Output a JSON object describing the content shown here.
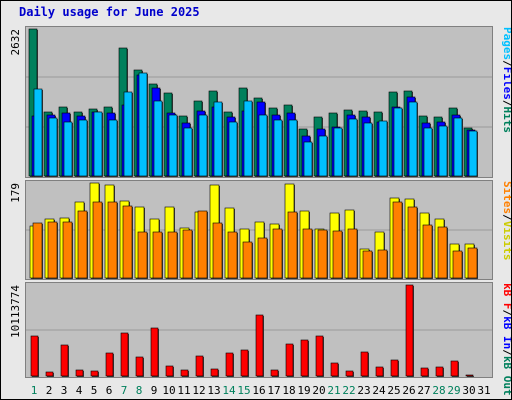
{
  "title": "Daily usage for June 2025",
  "colors": {
    "hits": "#00805c",
    "files": "#0000ff",
    "pages": "#00c0ff",
    "visits": "#ffff00",
    "sites": "#ff8000",
    "kb_in": "#0000ff",
    "kb_out": "#00805c",
    "kb_f": "#ff0000",
    "weekend_label": "#00805c",
    "weekday_label": "#000000",
    "panel_bg": "#c0c0c0",
    "frame_bg": "#e8e8e8"
  },
  "legends": {
    "top": [
      {
        "text": "Hits",
        "color": "#00805c"
      },
      {
        "text": "/",
        "color": "#000000"
      },
      {
        "text": "Files",
        "color": "#0000ff"
      },
      {
        "text": "/",
        "color": "#000000"
      },
      {
        "text": "Pages",
        "color": "#00c0ff"
      }
    ],
    "middle": [
      {
        "text": "Visits",
        "color": "#cccc00"
      },
      {
        "text": "/",
        "color": "#000000"
      },
      {
        "text": "Sites",
        "color": "#ff8000"
      }
    ],
    "bottom": [
      {
        "text": "kB Out",
        "color": "#00805c"
      },
      {
        "text": "/",
        "color": "#000000"
      },
      {
        "text": "kB In",
        "color": "#0000ff"
      },
      {
        "text": "/",
        "color": "#000000"
      },
      {
        "text": "kB F",
        "color": "#ff0000"
      }
    ]
  },
  "chart_data": [
    {
      "type": "bar",
      "name": "hits-files-pages",
      "categories": [
        1,
        2,
        3,
        4,
        5,
        6,
        7,
        8,
        9,
        10,
        11,
        12,
        13,
        14,
        15,
        16,
        17,
        18,
        19,
        20,
        21,
        22,
        23,
        24,
        25,
        26,
        27,
        28,
        29,
        30,
        31
      ],
      "ylim": [
        0,
        2632
      ],
      "max_label": "2632",
      "series": [
        {
          "name": "Hits",
          "values": [
            2632,
            1150,
            1230,
            1150,
            1200,
            1230,
            2300,
            1900,
            1650,
            1480,
            1080,
            1340,
            1520,
            1150,
            1580,
            1400,
            1220,
            1280,
            840,
            1050,
            1130,
            1180,
            1160,
            1150,
            1500,
            1520,
            1080,
            1050,
            1220,
            860,
            0
          ]
        },
        {
          "name": "Files",
          "values": [
            1080,
            1100,
            1120,
            1080,
            1150,
            1120,
            1280,
            1800,
            1580,
            1120,
            950,
            1170,
            1230,
            1050,
            1160,
            1320,
            1100,
            1130,
            720,
            850,
            870,
            1100,
            1060,
            960,
            1230,
            1420,
            940,
            970,
            1100,
            830,
            0
          ]
        },
        {
          "name": "Pages",
          "values": [
            1550,
            1040,
            970,
            1010,
            1150,
            1000,
            1500,
            1850,
            1340,
            1090,
            860,
            1100,
            1320,
            960,
            1340,
            1100,
            1010,
            1000,
            600,
            720,
            860,
            1020,
            940,
            980,
            1220,
            1320,
            860,
            900,
            1040,
            800,
            0
          ]
        }
      ]
    },
    {
      "type": "bar",
      "name": "visits-sites",
      "categories": [
        1,
        2,
        3,
        4,
        5,
        6,
        7,
        8,
        9,
        10,
        11,
        12,
        13,
        14,
        15,
        16,
        17,
        18,
        19,
        20,
        21,
        22,
        23,
        24,
        25,
        26,
        27,
        28,
        29,
        30,
        31
      ],
      "ylim": [
        0,
        179
      ],
      "max_label": "179",
      "series": [
        {
          "name": "Visits",
          "values": [
            98,
            111,
            113,
            143,
            179,
            175,
            146,
            134,
            111,
            133,
            95,
            124,
            175,
            131,
            93,
            106,
            101,
            178,
            126,
            92,
            122,
            128,
            54,
            86,
            151,
            148,
            123,
            111,
            64,
            65,
            0
          ]
        },
        {
          "name": "Sites",
          "values": [
            103,
            106,
            106,
            127,
            143,
            144,
            136,
            86,
            86,
            86,
            91,
            126,
            103,
            86,
            68,
            75,
            93,
            125,
            93,
            91,
            88,
            93,
            50,
            53,
            143,
            133,
            99,
            96,
            50,
            56,
            0
          ]
        }
      ]
    },
    {
      "type": "bar",
      "name": "kb-out-in-f",
      "categories": [
        1,
        2,
        3,
        4,
        5,
        6,
        7,
        8,
        9,
        10,
        11,
        12,
        13,
        14,
        15,
        16,
        17,
        18,
        19,
        20,
        21,
        22,
        23,
        24,
        25,
        26,
        27,
        28,
        29,
        30,
        31
      ],
      "ylim": [
        0,
        10113774
      ],
      "max_label": "10113774",
      "series": [
        {
          "name": "kB F",
          "values": [
            4400000,
            480000,
            3500000,
            640000,
            560000,
            2600000,
            4800000,
            2100000,
            5300000,
            1100000,
            720000,
            2200000,
            800000,
            2600000,
            2900000,
            6800000,
            700000,
            3600000,
            4000000,
            4400000,
            1400000,
            560000,
            2700000,
            1000000,
            1800000,
            10113774,
            900000,
            1000000,
            1700000,
            120000,
            0
          ]
        }
      ]
    }
  ],
  "days": [
    "1",
    "2",
    "3",
    "4",
    "5",
    "6",
    "7",
    "8",
    "9",
    "10",
    "11",
    "12",
    "13",
    "14",
    "15",
    "16",
    "17",
    "18",
    "19",
    "20",
    "21",
    "22",
    "23",
    "24",
    "25",
    "26",
    "27",
    "28",
    "29",
    "30",
    "31"
  ],
  "weekend_days": [
    1,
    7,
    8,
    14,
    15,
    21,
    22,
    28,
    29
  ]
}
